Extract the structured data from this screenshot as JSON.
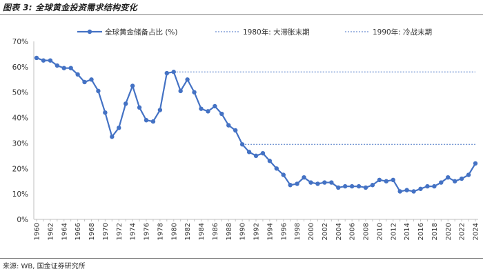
{
  "figure": {
    "title": "图表 3: 全球黄金投资需求结构变化",
    "source": "来源: WB, 国金证券研究所"
  },
  "colors": {
    "series": "#4472c4",
    "axis": "#bfbfbf",
    "text": "#333333"
  },
  "chart_data": {
    "type": "line",
    "title": "",
    "xlabel": "",
    "ylabel": "",
    "ylim": [
      0,
      70
    ],
    "y_ticks": [
      "0%",
      "10%",
      "20%",
      "30%",
      "40%",
      "50%",
      "60%",
      "70%"
    ],
    "x_tick_labels": [
      "1960",
      "1962",
      "1964",
      "1966",
      "1968",
      "1970",
      "1972",
      "1974",
      "1976",
      "1978",
      "1980",
      "1982",
      "1984",
      "1986",
      "1988",
      "1990",
      "1992",
      "1994",
      "1996",
      "1998",
      "2000",
      "2002",
      "2004",
      "2006",
      "2008",
      "2010",
      "2012",
      "2014",
      "2016",
      "2018",
      "2020",
      "2022",
      "2024"
    ],
    "grid": false,
    "legend_position": "top",
    "x": [
      1960,
      1961,
      1962,
      1963,
      1964,
      1965,
      1966,
      1967,
      1968,
      1969,
      1970,
      1971,
      1972,
      1973,
      1974,
      1975,
      1976,
      1977,
      1978,
      1979,
      1980,
      1981,
      1982,
      1983,
      1984,
      1985,
      1986,
      1987,
      1988,
      1989,
      1990,
      1991,
      1992,
      1993,
      1994,
      1995,
      1996,
      1997,
      1998,
      1999,
      2000,
      2001,
      2002,
      2003,
      2004,
      2005,
      2006,
      2007,
      2008,
      2009,
      2010,
      2011,
      2012,
      2013,
      2014,
      2015,
      2016,
      2017,
      2018,
      2019,
      2020,
      2021,
      2022,
      2023,
      2024
    ],
    "series": [
      {
        "name": "全球黄金储备占比 (%)",
        "values": [
          63.5,
          62.5,
          62.5,
          60.5,
          59.5,
          59.5,
          57,
          54,
          55,
          50.5,
          42,
          32.5,
          36,
          45.5,
          52.5,
          44,
          39,
          38.5,
          43,
          57.5,
          58,
          50.5,
          55,
          50,
          43.5,
          42.5,
          44.5,
          41.5,
          37,
          35,
          29.5,
          26.5,
          25,
          26,
          23,
          20,
          17.5,
          13.5,
          14,
          16.5,
          14.5,
          14,
          14.5,
          14.5,
          12.5,
          13,
          13,
          13,
          12.5,
          13.5,
          15.5,
          15,
          15.5,
          11,
          11.5,
          11,
          12,
          13,
          13,
          14.5,
          16.5,
          15,
          16,
          17.5,
          22
        ]
      },
      {
        "name": "1980年: 大滞胀末期",
        "values": [
          58,
          58
        ],
        "x": [
          1980,
          2024
        ]
      },
      {
        "name": "1990年: 冷战末期",
        "values": [
          29.5,
          29.5
        ],
        "x": [
          1990,
          2024
        ]
      }
    ]
  }
}
